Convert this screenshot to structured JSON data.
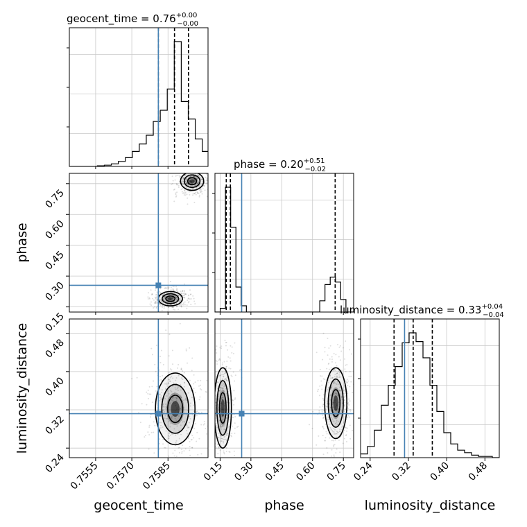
{
  "chart_data": {
    "type": "corner",
    "parameters": [
      "geocent_time",
      "phase",
      "luminosity_distance"
    ],
    "truths": {
      "geocent_time": 0.7581,
      "phase": 0.255,
      "luminosity_distance": 0.312
    },
    "titles": {
      "geocent_time": {
        "prefix": "geocent_time = 0.76",
        "sup": "+0.00",
        "sub": "−0.00"
      },
      "phase": {
        "prefix": "phase = 0.20",
        "sup": "+0.51",
        "sub": "−0.02"
      },
      "luminosity_distance": {
        "prefix": "luminosity_distance = 0.33",
        "sup": "+0.04",
        "sub": "−0.04"
      }
    },
    "axes": {
      "geocent_time": {
        "range": [
          0.75441,
          0.76016
        ],
        "ticks": [
          "0.7555",
          "0.7570",
          "0.7585"
        ],
        "tick_values": [
          0.7555,
          0.757,
          0.7585
        ]
      },
      "phase": {
        "range": [
          0.125,
          0.8
        ],
        "ticks": [
          "0.15",
          "0.30",
          "0.45",
          "0.60",
          "0.75"
        ],
        "tick_values": [
          0.15,
          0.3,
          0.45,
          0.6,
          0.75
        ]
      },
      "luminosity_distance": {
        "range": [
          0.22,
          0.51
        ],
        "ticks": [
          "0.24",
          "0.32",
          "0.40",
          "0.48"
        ],
        "tick_values": [
          0.24,
          0.32,
          0.4,
          0.48
        ]
      }
    },
    "hist_geocent_time": {
      "bin_edges": [
        0.75441,
        0.7547,
        0.75499,
        0.75528,
        0.75557,
        0.75586,
        0.75615,
        0.75644,
        0.75673,
        0.75702,
        0.75731,
        0.7576,
        0.75789,
        0.75818,
        0.75847,
        0.75876,
        0.75905,
        0.75934,
        0.75963,
        0.75992,
        0.76016
      ],
      "counts": [
        0,
        0,
        0,
        0,
        0.5,
        1,
        2,
        4,
        7,
        12,
        18,
        25,
        36,
        45,
        62,
        100,
        52,
        38,
        22,
        12
      ],
      "quantiles": [
        0.7581,
        0.75877,
        0.75935
      ]
    },
    "hist_phase": {
      "bin_edges": [
        0.125,
        0.1505,
        0.176,
        0.2015,
        0.227,
        0.2525,
        0.278,
        0.3035,
        0.329,
        0.3545,
        0.38,
        0.4055,
        0.431,
        0.4565,
        0.482,
        0.5075,
        0.533,
        0.5585,
        0.584,
        0.6095,
        0.635,
        0.6605,
        0.686,
        0.7115,
        0.737,
        0.7625,
        0.8
      ],
      "counts": [
        0,
        3,
        100,
        68,
        20,
        5,
        0,
        0,
        0,
        0,
        0,
        0,
        0,
        0,
        0,
        0,
        0,
        0,
        0,
        0,
        9,
        22,
        28,
        24,
        10,
        0
      ],
      "quantiles": [
        0.18,
        0.2,
        0.71
      ]
    },
    "hist_luminosity_distance": {
      "bin_edges": [
        0.22,
        0.2345,
        0.249,
        0.2635,
        0.278,
        0.2925,
        0.307,
        0.3215,
        0.336,
        0.3505,
        0.365,
        0.3795,
        0.394,
        0.4085,
        0.423,
        0.4375,
        0.452,
        0.4665,
        0.481,
        0.4955,
        0.51
      ],
      "counts": [
        3,
        9,
        22,
        42,
        58,
        73,
        92,
        100,
        93,
        80,
        58,
        37,
        20,
        11,
        6,
        4,
        2,
        1,
        1,
        0
      ],
      "quantiles": [
        0.29,
        0.33,
        0.37
      ]
    },
    "contours_phase_vs_geocent_time": [
      {
        "center": [
          0.7595,
          0.762
        ],
        "radii": [
          0.00048,
          0.045
        ],
        "shading": true
      },
      {
        "center": [
          0.7586,
          0.19
        ],
        "radii": [
          0.0005,
          0.035
        ],
        "shading": true
      }
    ],
    "contours_luminosity_distance_vs_geocent_time": [
      {
        "center": [
          0.7588,
          0.322
        ],
        "radii": [
          0.00082,
          0.075
        ],
        "shading": true
      }
    ],
    "contours_luminosity_distance_vs_phase": [
      {
        "center": [
          0.163,
          0.324
        ],
        "radii": [
          0.042,
          0.084
        ],
        "shading": true
      },
      {
        "center": [
          0.713,
          0.334
        ],
        "radii": [
          0.054,
          0.074
        ],
        "shading": true
      }
    ]
  }
}
